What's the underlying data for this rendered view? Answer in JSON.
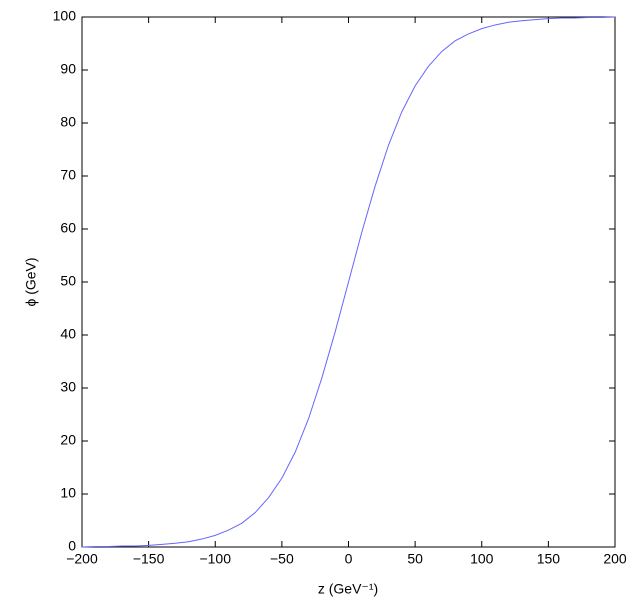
{
  "chart_data": {
    "type": "line",
    "x_label": "z (GeV⁻¹)",
    "y_label": "ϕ (GeV)",
    "x": [
      -200,
      -190,
      -180,
      -170,
      -160,
      -150,
      -140,
      -130,
      -120,
      -110,
      -100,
      -90,
      -80,
      -70,
      -60,
      -50,
      -40,
      -30,
      -20,
      -10,
      0,
      10,
      20,
      30,
      40,
      50,
      60,
      70,
      80,
      90,
      100,
      110,
      120,
      130,
      140,
      150,
      160,
      170,
      180,
      190,
      200
    ],
    "series": [
      {
        "name": "ϕ",
        "color": "#6666ff",
        "values": [
          0.0,
          0.1,
          0.1,
          0.2,
          0.2,
          0.3,
          0.5,
          0.7,
          1.0,
          1.5,
          2.2,
          3.2,
          4.5,
          6.5,
          9.3,
          13.0,
          17.9,
          24.2,
          31.9,
          40.6,
          50,
          59.4,
          68.1,
          75.8,
          82.1,
          87.0,
          90.7,
          93.5,
          95.5,
          96.8,
          97.8,
          98.5,
          99.0,
          99.3,
          99.5,
          99.7,
          99.8,
          99.8,
          99.9,
          99.9,
          100.0
        ]
      }
    ],
    "xlim": [
      -200,
      200
    ],
    "xticks": [
      {
        "value": -200,
        "label": "−200"
      },
      {
        "value": -150,
        "label": "−150"
      },
      {
        "value": -100,
        "label": "−100"
      },
      {
        "value": -50,
        "label": "−50"
      },
      0,
      50,
      100,
      150,
      200
    ],
    "ylim": [
      0,
      100
    ],
    "yticks": [
      0,
      10,
      20,
      30,
      40,
      50,
      60,
      70,
      80,
      90,
      100
    ],
    "grid": false
  }
}
